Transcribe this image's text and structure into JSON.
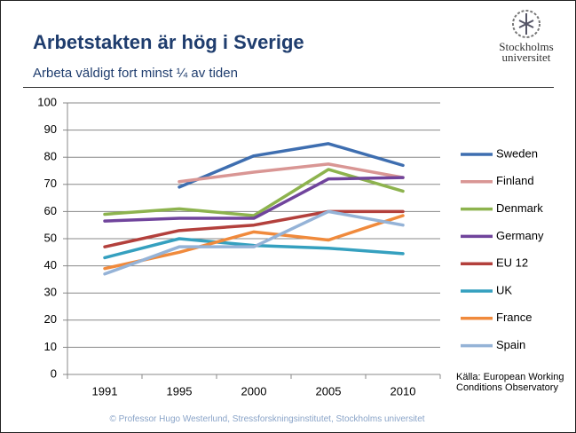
{
  "header": {
    "title": "Arbetstakten är hög i Sverige",
    "subtitle": "Arbeta väldigt fort minst ¼ av tiden",
    "logo": [
      "Stockholms",
      "universitet"
    ]
  },
  "chart_data": {
    "type": "line",
    "categories": [
      "1991",
      "1995",
      "2000",
      "2005",
      "2010"
    ],
    "series": [
      {
        "name": "Sweden",
        "color": "#3e6eb0",
        "values": [
          null,
          69,
          80.5,
          85,
          77
        ]
      },
      {
        "name": "Finland",
        "color": "#d99694",
        "values": [
          null,
          71,
          74.5,
          77.5,
          72.5
        ]
      },
      {
        "name": "Denmark",
        "color": "#8db34e",
        "values": [
          59,
          61,
          58.5,
          75.5,
          67.5
        ]
      },
      {
        "name": "Germany",
        "color": "#70449c",
        "values": [
          56.5,
          57.5,
          57.5,
          72,
          72.5
        ]
      },
      {
        "name": "EU 12",
        "color": "#b3403c",
        "values": [
          47,
          53,
          55,
          60,
          60
        ]
      },
      {
        "name": "UK",
        "color": "#35a0bf",
        "values": [
          43,
          50,
          47.5,
          46.5,
          44.5
        ]
      },
      {
        "name": "France",
        "color": "#f08a3c",
        "values": [
          39,
          45,
          52.5,
          49.5,
          58.5
        ]
      },
      {
        "name": "Spain",
        "color": "#95b3d7",
        "values": [
          37,
          47,
          47,
          60,
          55
        ]
      }
    ],
    "ylim": [
      0,
      100
    ],
    "yticks": [
      0,
      10,
      20,
      30,
      40,
      50,
      60,
      70,
      80,
      90,
      100
    ],
    "grid": true,
    "legend": "right",
    "source": "Källa: European Working Conditions Observatory"
  },
  "footer": "© Professor Hugo Westerlund, Stressforskningsinstitutet, Stockholms universitet"
}
